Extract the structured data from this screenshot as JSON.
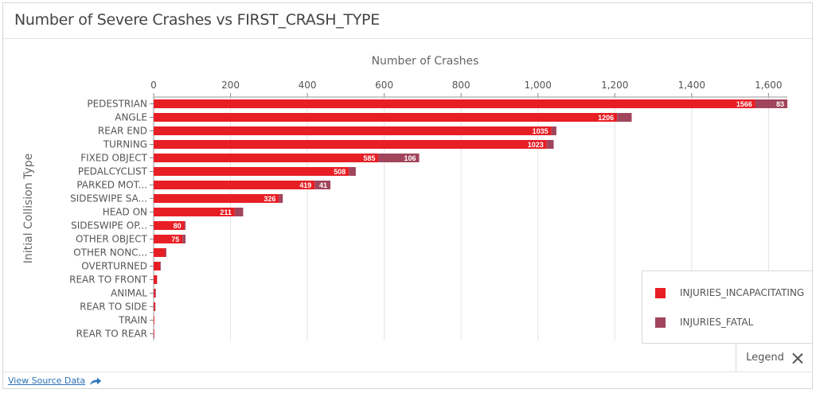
{
  "title": "Number of Severe Crashes vs FIRST_CRASH_TYPE",
  "footer": {
    "source_link": "View Source Data",
    "share_icon": "share-arrow-icon"
  },
  "legend": {
    "toggle_label": "Legend",
    "close_icon": "close-icon",
    "items": [
      {
        "label": "INJURIES_INCAPACITATING",
        "color": "#e81e25"
      },
      {
        "label": "INJURIES_FATAL",
        "color": "#a0455c"
      }
    ]
  },
  "chart_data": {
    "type": "bar",
    "orientation": "horizontal",
    "stacked": true,
    "xlabel": "Number of Crashes",
    "ylabel": "Initial Collision Type",
    "xlim": [
      0,
      1649
    ],
    "x_ticks": [
      "0",
      "200",
      "400",
      "600",
      "800",
      "1,000",
      "1,200",
      "1,400",
      "1,600"
    ],
    "x_axis_position": "top",
    "legend_position": "bottom-right",
    "grid": true,
    "categories": [
      "PEDESTRIAN",
      "ANGLE",
      "REAR END",
      "TURNING",
      "FIXED OBJECT",
      "PEDALCYCLIST",
      "PARKED MOT...",
      "SIDESWIPE SA...",
      "HEAD ON",
      "SIDESWIPE OP...",
      "OTHER OBJECT",
      "OTHER NONC...",
      "OVERTURNED",
      "REAR TO FRONT",
      "ANIMAL",
      "REAR TO SIDE",
      "TRAIN",
      "REAR TO REAR"
    ],
    "series": [
      {
        "name": "INJURIES_INCAPACITATING",
        "color": "#e81e25",
        "values": [
          1566,
          1206,
          1035,
          1023,
          585,
          508,
          419,
          326,
          211,
          80,
          75,
          30,
          17,
          9,
          4,
          3,
          1,
          1
        ],
        "data_labels": [
          "1566",
          "1206",
          "1035",
          "1023",
          "585",
          "508",
          "419",
          "326",
          "211",
          "80",
          "75",
          "",
          "",
          "",
          "",
          "",
          "",
          ""
        ]
      },
      {
        "name": "INJURIES_FATAL",
        "color": "#a0455c",
        "values": [
          83,
          38,
          13,
          18,
          106,
          18,
          41,
          10,
          22,
          3,
          8,
          3,
          1,
          0,
          1,
          1,
          0,
          0
        ],
        "data_labels": [
          "83",
          "",
          "",
          "",
          "106",
          "",
          "41",
          "",
          "",
          "",
          "",
          "",
          "",
          "",
          "",
          "",
          "",
          ""
        ]
      }
    ]
  }
}
